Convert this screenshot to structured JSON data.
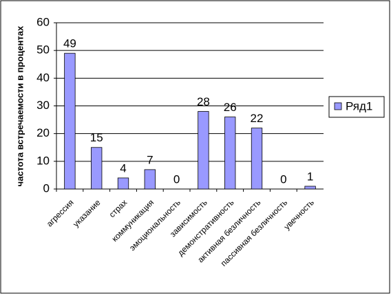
{
  "chart_data": {
    "type": "bar",
    "y_label": "частота встречаемости в процентах",
    "categories": [
      "агрессия",
      "указание",
      "страх",
      "коммуникация",
      "эмоциональность",
      "зависимость",
      "демонстративность",
      "активная безличность",
      "пассивная безличность",
      "увечность"
    ],
    "series": [
      {
        "name": "Ряд1",
        "color": "#9999ff",
        "values": [
          49,
          15,
          4,
          7,
          0,
          28,
          26,
          22,
          0,
          1
        ]
      }
    ],
    "ylim": [
      0,
      60
    ],
    "yticks": [
      0,
      10,
      20,
      30,
      40,
      50,
      60
    ],
    "grid": true,
    "legend": "right"
  }
}
